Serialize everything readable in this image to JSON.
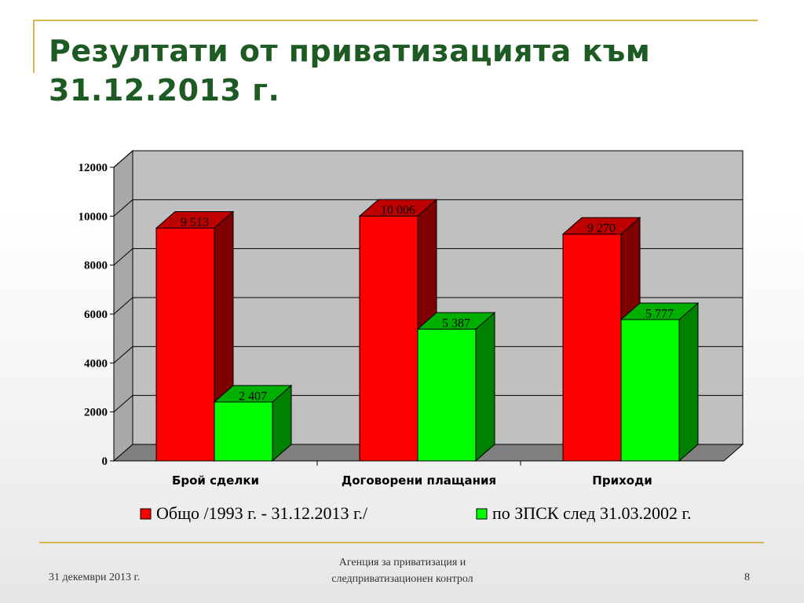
{
  "slide": {
    "title_line1": "Резултати от приватизацията към",
    "title_line2": "31.12.2013 г.",
    "footer_date": "31 декември 2013 г.",
    "footer_org_line1": "Агенция за приватизация и",
    "footer_org_line2": "следприватизационен контрол",
    "page_number": "8"
  },
  "chart_data": {
    "type": "bar",
    "style": "3d-clustered",
    "categories": [
      "Брой сделки",
      "Договорени плащания",
      "Приходи"
    ],
    "series": [
      {
        "name": "Общо /1993 г. - 31.12.2013 г./",
        "values": [
          9513,
          10006,
          9270
        ],
        "labels": [
          "9 513",
          "10 006",
          "9 270"
        ],
        "color": "#ff0000",
        "side_color": "#7f0000",
        "top_color": "#bf0000"
      },
      {
        "name": "по ЗПСК след 31.03.2002 г.",
        "values": [
          2407,
          5387,
          5777
        ],
        "labels": [
          "2 407",
          "5 387",
          "5 777"
        ],
        "color": "#00ff00",
        "side_color": "#008000",
        "top_color": "#00b000"
      }
    ],
    "y_ticks": [
      "0",
      "2000",
      "4000",
      "6000",
      "8000",
      "10000",
      "12000"
    ],
    "ylim": [
      0,
      12000
    ],
    "grid": true,
    "legend_position": "bottom",
    "wall_color": "#c0c0c0",
    "floor_color": "#808080"
  }
}
